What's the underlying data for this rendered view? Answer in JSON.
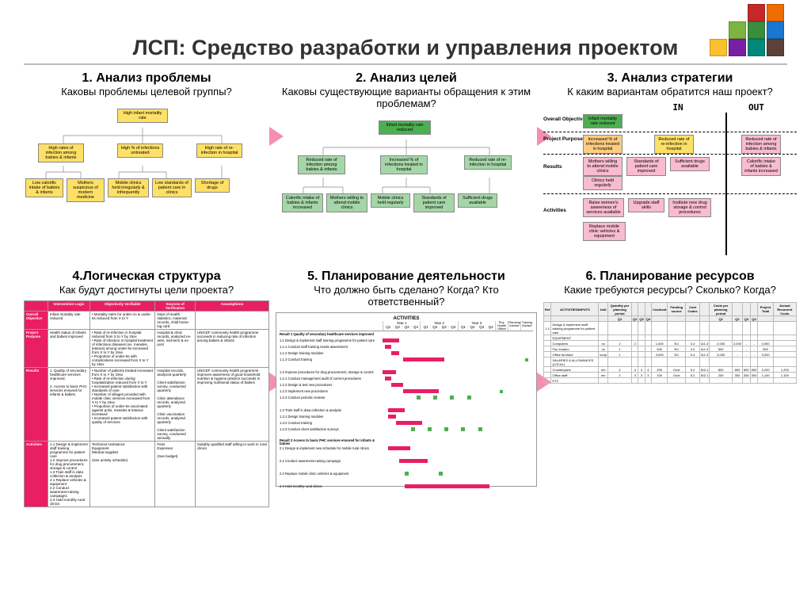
{
  "title": "ЛСП: Средство разработки и управления проектом",
  "logo_colors": [
    "#c62828",
    "#ef6c00",
    "#fbc02d",
    "#7cb342",
    "#388e3c",
    "#1976d2",
    "#7b1fa2",
    "#5d4037",
    "#00897b"
  ],
  "sections": {
    "s1": {
      "title": "1. Анализ проблемы",
      "sub": "Каковы проблемы целевой группы?"
    },
    "s2": {
      "title": "2. Анализ целей",
      "sub": "Каковы существующие варианты обращения к этим проблемам?"
    },
    "s3": {
      "title": "3. Анализ стратегии",
      "sub": "К каким вариантам обратится наш проект?"
    },
    "s4": {
      "title": "4.Логическая структура",
      "sub": "Как будут достигнуты цели проекта?"
    },
    "s5": {
      "title": "5. Планирование деятельности",
      "sub": "Что должно быть сделано? Когда? Кто ответственный?"
    },
    "s6": {
      "title": "6. Планирование ресурсов",
      "sub": "Какие требуются ресурсы? Сколько? Когда?"
    }
  },
  "problem_tree": {
    "root": "High infant mortality rate",
    "level2": [
      "High rates of infection among babies & infants",
      "High % of infections untreated",
      "High rate of re-infection in hospital"
    ],
    "level3": [
      "Low calorific intake of babies & infants",
      "Mothers suspicious of modern medicine",
      "Mobile clinics held irregularly & infrequently",
      "Low standards of patient care in clinics",
      "Shortage of drugs"
    ]
  },
  "objective_tree": {
    "root": "Infant mortality rate reduced",
    "level2": [
      "Reduced rate of infection among babies & infants",
      "Increased % of infections treated in hospital",
      "Reduced rate of re-infection in hospital"
    ],
    "level3": [
      "Calorific intake of babies & infants increased",
      "Mothers willing to attend mobile clinics",
      "Mobile clinics held regularly",
      "Standards of patient care improved",
      "Sufficient drugs available"
    ]
  },
  "strategy": {
    "in": "IN",
    "out": "OUT",
    "rows": [
      {
        "label": "Overall Objective",
        "in": [
          "Infant mortality rate reduced"
        ],
        "out": []
      },
      {
        "label": "Project Purpose",
        "in": [
          "Increased % of infections treated in hospital"
        ],
        "out": [
          "Reduced rate of re-infection in hospital",
          "Reduced rate of infection among babies & infants"
        ]
      },
      {
        "label": "Results",
        "in": [
          "Mothers willing to attend mobile clinics",
          "Standards of patient care improved",
          "Sufficient drugs available",
          "Clinics held regularly"
        ],
        "out": [
          "Calorific intake of babies & infants increased"
        ]
      },
      {
        "label": "Activities",
        "in": [
          "Raise women's awareness of services available",
          "Upgrade staff skills",
          "Institute new drug storage & control procedures",
          "Replace mobile clinic vehicles & equipment"
        ],
        "out": []
      }
    ]
  },
  "logframe": {
    "headers": [
      "",
      "Intervention Logic",
      "Objectively Verifiable",
      "Sources of Verification",
      "Assumptions"
    ],
    "rows": [
      {
        "h": "Overall Objective",
        "c": [
          "Infant mortality rate reduced",
          "• Mortality rates for under-1s & under-5s reduced from X to Y",
          "Dept of Health statistics, maternal records, child home-log card",
          ""
        ]
      },
      {
        "h": "Project Purpose",
        "c": [
          "Health status of infants and babies improved",
          "• Rate of re-infection in hospital reduced from X to Y by 19xx\n• Rate of infection in hospital treatment of infectious diseases (ex. measles, tetanus) among under-5s increased from X to Y by 19xx\n• Proportion of under-5s with complications increased from X to Y by 19xx",
          "Hospital & clinic records, analyzed ex-ante, mid-term & ex-post",
          "UNICEF community health programme succeeds in reducing rate of infection among babies & infants"
        ]
      },
      {
        "h": "Results",
        "c": [
          "1. Quality of secondary healthcare services improved.\n\n2. Access to basic PHC services ensured for infants & babies.",
          "• Number of patients treated increased from X to Y by 19xx\n• Rate of re-infection during hospitalization reduced from X to Y\n• Increased patient satisfaction with standards of care\n• Number of villages provided with mobile clinic services increased from X to Y by 19xx\n• Proportion of under-5s vaccinated against polio, measles & tetanus increased\n• Increased patient satisfaction with quality of services",
          "Hospital records, analyzed quarterly\n\nClient satisfaction survey, conducted quarterly\n\nClinic attendance records, analyzed quarterly\n\nClinic vaccination records, analyzed quarterly\n\nClient satisfaction survey, conducted annually",
          "UNICEF community health programme improves awareness of good household nutrition & hygiene practice succeeds in improving nutritional status of babies"
        ]
      },
      {
        "h": "Activities",
        "c": [
          "1.1 Design & implement staff training programme for patient care\n1.2 Improve procedures for drug procurement, storage & control\n1.3 Train staff in data collection & analysis\n2.1 Replace vehicles & equipment\n2.2 Conduct awareness-raising campaigns\n2.3 Hold monthly rural clinics",
          "Technical Assistance\nEquipment\nMedical supplies\n\n(See activity schedule)",
          "Fees\nExpenses\n\n(See budget)",
          "Suitably qualified staff willing to work in rural clinics"
        ]
      }
    ]
  },
  "activities": {
    "title": "ACTIVITIES",
    "resp_headers": [
      "Proj. Health Officer",
      "Planning Adviser",
      "Training Adviser"
    ],
    "year_headers": [
      "Year 1",
      "Year 2",
      "Year 3"
    ],
    "q_headers": [
      "Q1",
      "Q2",
      "Q3",
      "Q4"
    ],
    "items": [
      {
        "t": "Result 1 Quality of secondary healthcare services improved",
        "bold": true
      },
      {
        "t": "1.1 Design & implement staff training programme for patient care",
        "bar": [
          0,
          15
        ]
      },
      {
        "t": "1.1.1 Conduct staff training needs assessment",
        "bar": [
          2,
          8
        ]
      },
      {
        "t": "1.1.2 Design training modules",
        "bar": [
          8,
          15
        ]
      },
      {
        "t": "1.1.3 Conduct training",
        "bar": [
          18,
          55
        ],
        "resp": [
          false,
          false,
          true
        ]
      },
      {
        "t": ""
      },
      {
        "t": "1.2 Improve procedures for drug procurement, storage & control",
        "bar": [
          0,
          12
        ]
      },
      {
        "t": "1.2.1 Conduct management audit of current procedures",
        "bar": [
          2,
          8
        ]
      },
      {
        "t": "1.2.2 Design & test new procedures",
        "bar": [
          8,
          18
        ]
      },
      {
        "t": "1.2.3 Implement new procedures",
        "bar": [
          18,
          50
        ],
        "resp": [
          true,
          false,
          false
        ]
      },
      {
        "t": "1.2.4 Conduct periodic reviews",
        "dots": [
          30,
          45,
          60,
          75
        ]
      },
      {
        "t": ""
      },
      {
        "t": "1.3 Train staff in data collection & analysis",
        "bar": [
          5,
          20
        ]
      },
      {
        "t": "1.3.1 Design training modules",
        "bar": [
          5,
          12
        ]
      },
      {
        "t": "1.3.2 Conduct training",
        "bar": [
          12,
          35
        ]
      },
      {
        "t": "1.3.3 Conduct client satisfaction surveys",
        "dots": [
          25,
          40,
          55,
          70,
          85
        ]
      },
      {
        "t": ""
      },
      {
        "t": "Result 2 Access to basic PHC services ensured for infants & babies",
        "bold": true
      },
      {
        "t": "2.1 Design & implement new schedule for mobile rural clinics",
        "bar": [
          5,
          25
        ]
      },
      {
        "t": ""
      },
      {
        "t": "2.2 Conduct awareness-raising campaign",
        "bar": [
          15,
          40
        ]
      },
      {
        "t": ""
      },
      {
        "t": "2.3 Replace mobile clinic vehicles & equipment",
        "dots": [
          20,
          50
        ]
      },
      {
        "t": ""
      },
      {
        "t": "2.4 Hold monthly rural clinics",
        "bar": [
          20,
          95
        ]
      }
    ]
  },
  "budget": {
    "headers": [
      "Ref",
      "ACTIVITIES/INPUTS",
      "Unit",
      "Quantity per planning period",
      "",
      "",
      "",
      "Cost/unit",
      "Funding source",
      "Cost Codes",
      "",
      "Costs per planning period",
      "",
      "",
      "",
      "Project Total",
      "Annual Recurrent Costs"
    ],
    "sub_headers": [
      "",
      "",
      "",
      "Q1",
      "Q2",
      "Q3",
      "Q4",
      "",
      "",
      "",
      "",
      "Q1",
      "Q2",
      "Q3",
      "Q4",
      "",
      ""
    ],
    "rows": [
      [
        "1.1",
        "Design & implement staff training programme for patient care",
        "",
        "",
        "",
        "",
        "",
        "",
        "",
        "",
        "",
        "",
        "",
        "",
        "",
        "",
        ""
      ],
      [
        "",
        "EQUIPMENT",
        "",
        "",
        "",
        "",
        "",
        "",
        "",
        "",
        "",
        "",
        "",
        "",
        "",
        "",
        ""
      ],
      [
        "",
        "Computers",
        "no",
        "2",
        "2",
        "",
        "",
        "1,000",
        "EU",
        "3.4",
        "A/1.3",
        "2,000",
        "2,000",
        "-",
        "-",
        "4,000",
        ""
      ],
      [
        "",
        "Fax modem",
        "no",
        "1",
        "",
        "",
        "",
        "500",
        "EU",
        "3.4",
        "A/1.3",
        "500",
        "-",
        "-",
        "-",
        "500",
        ""
      ],
      [
        "",
        "Office furniture",
        "lump",
        "1",
        "",
        "",
        "",
        "3,000",
        "EU",
        "3.4",
        "A/1.3",
        "3,000",
        "-",
        "-",
        "-",
        "3,000",
        ""
      ],
      [
        "",
        "SALARIES & ALLOWANCES (LOCAL)",
        "",
        "",
        "",
        "",
        "",
        "",
        "",
        "",
        "",
        "",
        "",
        "",
        "",
        "",
        ""
      ],
      [
        "",
        "Counterparts",
        "mn",
        "4",
        "4",
        "4",
        "4",
        "200",
        "Govt",
        "5.2",
        "B/2.1",
        "800",
        "800",
        "800",
        "800",
        "3,200",
        "1,200"
      ],
      [
        "",
        "Office staff",
        "mn",
        "2",
        "3",
        "3",
        "3",
        "100",
        "Govt",
        "5.2",
        "B/2.1",
        "200",
        "300",
        "300",
        "300",
        "1,100",
        "1,100"
      ],
      [
        "",
        "ETC",
        "",
        "",
        "",
        "",
        "",
        "",
        "",
        "",
        "",
        "",
        "",
        "",
        "",
        "",
        ""
      ]
    ]
  },
  "colors": {
    "yellow": "#ffe066",
    "green": "#4caf50",
    "lgreen": "#a5d6a7",
    "pink": "#f8bbd0",
    "orange": "#ffcc80",
    "magenta": "#e91e63",
    "arrow": "#f48fb1"
  }
}
